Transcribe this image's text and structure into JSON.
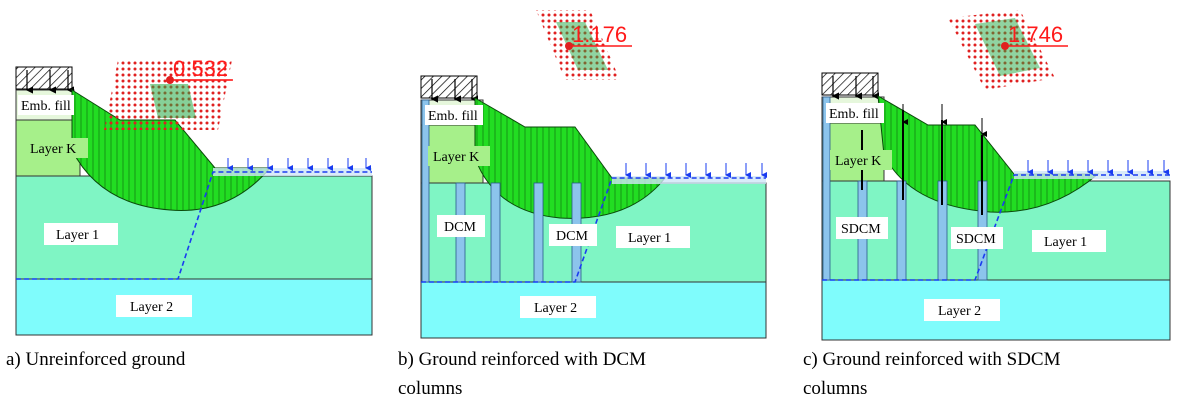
{
  "panels": [
    {
      "fos": "0.532",
      "caption_lines": [
        "a) Unreinforced ground"
      ],
      "labels": {
        "emb_fill": "Emb. fill",
        "layer_k": "Layer K",
        "layer_1": "Layer 1",
        "layer_2": "Layer 2"
      },
      "columns": []
    },
    {
      "fos": "1.176",
      "caption_lines": [
        "b) Ground reinforced with DCM",
        "columns"
      ],
      "labels": {
        "emb_fill": "Emb. fill",
        "layer_k": "Layer K",
        "layer_1": "Layer 1",
        "layer_2": "Layer 2"
      },
      "columns": [
        "DCM",
        "DCM"
      ]
    },
    {
      "fos": "1.746",
      "caption_lines": [
        "c) Ground reinforced with SDCM",
        "columns"
      ],
      "labels": {
        "emb_fill": "Emb. fill",
        "layer_k": "Layer K",
        "layer_1": "Layer 1",
        "layer_2": "Layer 2"
      },
      "columns": [
        "SDCM",
        "SDCM"
      ]
    }
  ],
  "colors": {
    "layer_1": "#7ff5c4",
    "layer_2": "#7ffcfc",
    "layer_k": "#a6f08a",
    "emb_fill": "#e6f7dc",
    "slip_mass": "#22dd22",
    "column": "#8cc4ec",
    "fos_text": "#ff1a1a",
    "water_line": "#1a3cf0"
  }
}
